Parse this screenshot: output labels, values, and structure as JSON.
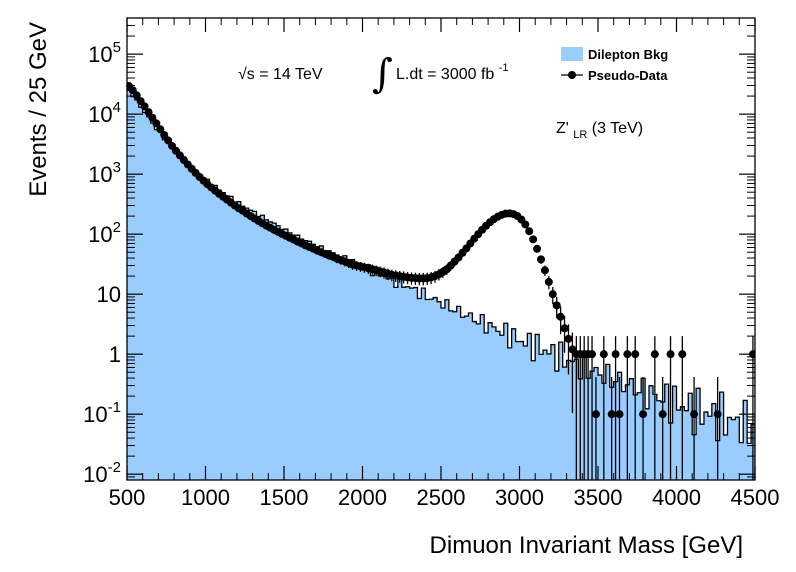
{
  "chart_data": {
    "type": "histogram",
    "x_scale": "linear",
    "y_scale": "log",
    "xlim": [
      500,
      4500
    ],
    "ylim": [
      0.008,
      400000
    ],
    "bin_width_gev": 25,
    "xlabel": "Dimuon Invariant Mass [GeV]",
    "ylabel": "Events / 25 GeV",
    "x_ticks": [
      {
        "value": 500,
        "label": "500"
      },
      {
        "value": 1000,
        "label": "1000"
      },
      {
        "value": 1500,
        "label": "1500"
      },
      {
        "value": 2000,
        "label": "2000"
      },
      {
        "value": 2500,
        "label": "2500"
      },
      {
        "value": 3000,
        "label": "3000"
      },
      {
        "value": 3500,
        "label": "3500"
      },
      {
        "value": 4000,
        "label": "4000"
      },
      {
        "value": 4500,
        "label": "4500"
      }
    ],
    "y_ticks": [
      {
        "value": 0.01,
        "base": "10",
        "exp": "-2"
      },
      {
        "value": 0.1,
        "base": "10",
        "exp": "-1"
      },
      {
        "value": 1,
        "base": "1",
        "exp": ""
      },
      {
        "value": 10,
        "base": "10",
        "exp": ""
      },
      {
        "value": 100,
        "base": "10",
        "exp": "2"
      },
      {
        "value": 1000,
        "base": "10",
        "exp": "3"
      },
      {
        "value": 10000,
        "base": "10",
        "exp": "4"
      },
      {
        "value": 100000,
        "base": "10",
        "exp": "5"
      }
    ],
    "legend": {
      "position": "top-right",
      "entries": [
        {
          "label": "Dilepton Bkg",
          "style": "filled",
          "color": "#99ccff"
        },
        {
          "label": "Pseudo-Data",
          "style": "marker",
          "color": "#000000"
        }
      ]
    },
    "annotations": {
      "energy": {
        "prefix": "√s = 14 TeV"
      },
      "lumi": {
        "integral": "∫",
        "text": "L.dt = 3000 fb",
        "sup": "-1"
      },
      "signal": {
        "main": "Z'",
        "sub": "LR",
        "suffix": " (3 TeV)"
      }
    },
    "series": [
      {
        "name": "Dilepton Bkg",
        "kind": "filled-step",
        "color": "#99ccff",
        "edge_color": "#000000",
        "anchors": [
          [
            500,
            28000
          ],
          [
            600,
            12000
          ],
          [
            700,
            5200
          ],
          [
            800,
            2500
          ],
          [
            900,
            1350
          ],
          [
            1000,
            800
          ],
          [
            1100,
            520
          ],
          [
            1200,
            340
          ],
          [
            1300,
            240
          ],
          [
            1400,
            170
          ],
          [
            1500,
            120
          ],
          [
            1600,
            88
          ],
          [
            1700,
            66
          ],
          [
            1800,
            50
          ],
          [
            1900,
            38
          ],
          [
            2000,
            30
          ],
          [
            2100,
            22
          ],
          [
            2200,
            17
          ],
          [
            2300,
            13
          ],
          [
            2400,
            9.5
          ],
          [
            2500,
            7.2
          ],
          [
            2600,
            5.3
          ],
          [
            2700,
            4.0
          ],
          [
            2800,
            3.0
          ],
          [
            2900,
            2.3
          ],
          [
            3000,
            1.7
          ],
          [
            3100,
            1.35
          ],
          [
            3200,
            1.05
          ],
          [
            3300,
            0.8
          ],
          [
            3400,
            0.62
          ],
          [
            3500,
            0.48
          ],
          [
            3600,
            0.38
          ],
          [
            3700,
            0.3
          ],
          [
            3800,
            0.23
          ],
          [
            3900,
            0.19
          ],
          [
            4000,
            0.15
          ],
          [
            4100,
            0.12
          ],
          [
            4200,
            0.1
          ],
          [
            4300,
            0.085
          ],
          [
            4400,
            0.07
          ],
          [
            4500,
            0.06
          ]
        ]
      },
      {
        "name": "Pseudo-Data",
        "kind": "points-with-errors",
        "color": "#000000",
        "points": [
          [
            512,
            29500
          ],
          [
            537,
            25000
          ],
          [
            562,
            20500
          ],
          [
            587,
            16500
          ],
          [
            612,
            13500
          ],
          [
            637,
            10800
          ],
          [
            662,
            8700
          ],
          [
            687,
            7000
          ],
          [
            712,
            5600
          ],
          [
            737,
            4500
          ],
          [
            762,
            3650
          ],
          [
            787,
            2950
          ],
          [
            812,
            2450
          ],
          [
            837,
            2050
          ],
          [
            862,
            1720
          ],
          [
            887,
            1450
          ],
          [
            912,
            1230
          ],
          [
            937,
            1050
          ],
          [
            962,
            900
          ],
          [
            987,
            780
          ],
          [
            1012,
            680
          ],
          [
            1037,
            600
          ],
          [
            1062,
            530
          ],
          [
            1087,
            470
          ],
          [
            1112,
            420
          ],
          [
            1137,
            375
          ],
          [
            1162,
            335
          ],
          [
            1187,
            300
          ],
          [
            1212,
            270
          ],
          [
            1237,
            245
          ],
          [
            1262,
            220
          ],
          [
            1287,
            200
          ],
          [
            1312,
            182
          ],
          [
            1337,
            166
          ],
          [
            1362,
            152
          ],
          [
            1387,
            139
          ],
          [
            1412,
            128
          ],
          [
            1437,
            118
          ],
          [
            1462,
            109
          ],
          [
            1487,
            101
          ],
          [
            1512,
            94
          ],
          [
            1537,
            87
          ],
          [
            1562,
            81
          ],
          [
            1587,
            75
          ],
          [
            1612,
            70
          ],
          [
            1637,
            65
          ],
          [
            1662,
            61
          ],
          [
            1687,
            57
          ],
          [
            1712,
            53
          ],
          [
            1737,
            50
          ],
          [
            1762,
            47
          ],
          [
            1787,
            44
          ],
          [
            1812,
            42
          ],
          [
            1837,
            39
          ],
          [
            1862,
            37
          ],
          [
            1887,
            35
          ],
          [
            1912,
            33
          ],
          [
            1937,
            31
          ],
          [
            1962,
            30
          ],
          [
            1987,
            29
          ],
          [
            2012,
            28
          ],
          [
            2037,
            27
          ],
          [
            2062,
            26
          ],
          [
            2087,
            25
          ],
          [
            2112,
            24
          ],
          [
            2137,
            23
          ],
          [
            2162,
            22
          ],
          [
            2187,
            21
          ],
          [
            2212,
            20.5
          ],
          [
            2237,
            20
          ],
          [
            2262,
            19.5
          ],
          [
            2287,
            19
          ],
          [
            2312,
            18.7
          ],
          [
            2337,
            18.5
          ],
          [
            2362,
            18.3
          ],
          [
            2387,
            18.3
          ],
          [
            2412,
            18.5
          ],
          [
            2437,
            19
          ],
          [
            2462,
            20
          ],
          [
            2487,
            21.5
          ],
          [
            2512,
            23.5
          ],
          [
            2537,
            26
          ],
          [
            2562,
            30
          ],
          [
            2587,
            35
          ],
          [
            2612,
            41
          ],
          [
            2637,
            49
          ],
          [
            2662,
            58
          ],
          [
            2687,
            70
          ],
          [
            2712,
            84
          ],
          [
            2737,
            100
          ],
          [
            2762,
            118
          ],
          [
            2787,
            138
          ],
          [
            2812,
            158
          ],
          [
            2837,
            178
          ],
          [
            2862,
            196
          ],
          [
            2887,
            210
          ],
          [
            2912,
            220
          ],
          [
            2937,
            222
          ],
          [
            2962,
            216
          ],
          [
            2987,
            200
          ],
          [
            3012,
            175
          ],
          [
            3037,
            145
          ],
          [
            3062,
            112
          ],
          [
            3087,
            82
          ],
          [
            3112,
            57
          ],
          [
            3137,
            38
          ],
          [
            3162,
            25
          ],
          [
            3187,
            16
          ],
          [
            3212,
            10
          ],
          [
            3237,
            6.5
          ],
          [
            3262,
            4.2
          ],
          [
            3287,
            2.7
          ],
          [
            3312,
            1.8
          ],
          [
            3337,
            1.2
          ],
          [
            3362,
            1.0
          ],
          [
            3387,
            1.0
          ],
          [
            3412,
            1.0
          ],
          [
            3437,
            1.0
          ],
          [
            3462,
            1.0
          ],
          [
            3487,
            0.1
          ],
          [
            3537,
            1.0
          ],
          [
            3587,
            0.1
          ],
          [
            3612,
            1.0
          ],
          [
            3637,
            0.1
          ],
          [
            3687,
            1.0
          ],
          [
            3737,
            1.0
          ],
          [
            3787,
            0.1
          ],
          [
            3862,
            1.0
          ],
          [
            3912,
            0.1
          ],
          [
            3962,
            1.0
          ],
          [
            4037,
            1.0
          ],
          [
            4112,
            0.1
          ],
          [
            4262,
            0.1
          ],
          [
            4487,
            1.0
          ]
        ]
      }
    ]
  }
}
